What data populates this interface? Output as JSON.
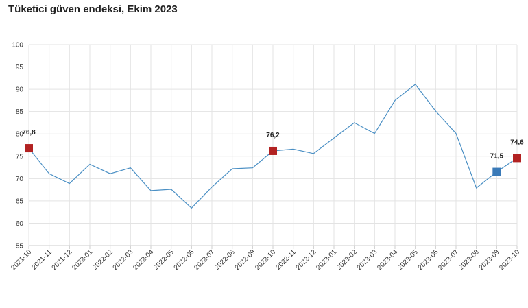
{
  "chart_data": {
    "type": "line",
    "title": "Tüketici güven endeksi, Ekim 2023",
    "xlabel": "",
    "ylabel": "",
    "ylim": [
      55,
      100
    ],
    "yticks": [
      55,
      60,
      65,
      70,
      75,
      80,
      85,
      90,
      95,
      100
    ],
    "grid": true,
    "legend": "none",
    "categories": [
      "2021-10",
      "2021-11",
      "2021-12",
      "2022-01",
      "2022-02",
      "2022-03",
      "2022-04",
      "2022-05",
      "2022-06",
      "2022-07",
      "2022-08",
      "2022-09",
      "2022-10",
      "2022-11",
      "2022-12",
      "2023-01",
      "2023-02",
      "2023-03",
      "2023-04",
      "2023-05",
      "2023-06",
      "2023-07",
      "2023-08",
      "2023-09",
      "2023-10"
    ],
    "series": [
      {
        "values": [
          76.8,
          71.1,
          68.9,
          73.2,
          71.1,
          72.4,
          67.3,
          67.6,
          63.4,
          68.1,
          72.2,
          72.4,
          76.2,
          76.6,
          75.6,
          79.1,
          82.5,
          80.1,
          87.5,
          91.1,
          85.1,
          80.1,
          67.9,
          71.5,
          74.6
        ],
        "color": "#4a8fc4"
      }
    ],
    "highlights": [
      {
        "index": 0,
        "label": "76,8",
        "color": "#b22222"
      },
      {
        "index": 12,
        "label": "76,2",
        "color": "#b22222"
      },
      {
        "index": 23,
        "label": "71,5",
        "color": "#3a7ab8"
      },
      {
        "index": 24,
        "label": "74,6",
        "color": "#b22222"
      }
    ]
  },
  "colors": {
    "line": "#4a8fc4",
    "grid": "#e3e3e3",
    "axis": "#cccccc"
  }
}
